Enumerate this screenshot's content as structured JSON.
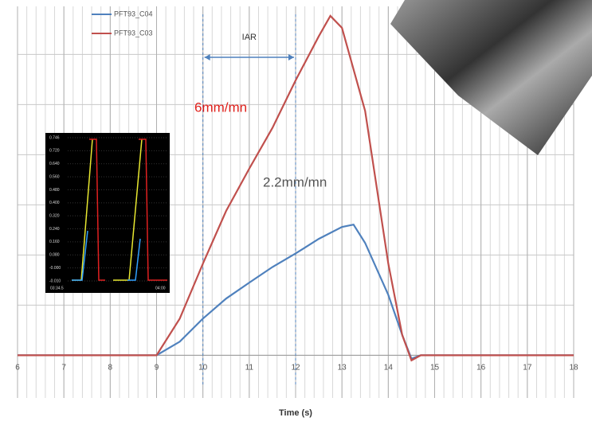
{
  "chart_data": {
    "type": "line",
    "x_label": "Time (s)",
    "xlim": [
      6,
      18
    ],
    "xticks": [
      6,
      7,
      8,
      9,
      10,
      11,
      12,
      13,
      14,
      15,
      16,
      17,
      18
    ],
    "ylim": [
      -0.1,
      1.0
    ],
    "grid": true,
    "legend": "top-left",
    "series": [
      {
        "name": "PFT93_C04",
        "color": "#4f81bd",
        "x": [
          6,
          9,
          9.5,
          10,
          10.5,
          11,
          11.5,
          12,
          12.5,
          13,
          13.25,
          13.5,
          14,
          14.3,
          14.5,
          14.7,
          18
        ],
        "values": [
          0,
          0,
          0.04,
          0.108,
          0.167,
          0.214,
          0.26,
          0.3,
          0.343,
          0.378,
          0.385,
          0.331,
          0.178,
          0.06,
          -0.01,
          0,
          0
        ]
      },
      {
        "name": "PFT93_C03",
        "color": "#c0504d",
        "x": [
          6,
          9,
          9.5,
          10,
          10.5,
          11,
          11.5,
          12,
          12.5,
          12.75,
          13,
          13.5,
          14,
          14.3,
          14.5,
          14.7,
          18
        ],
        "values": [
          0,
          0,
          0.108,
          0.27,
          0.425,
          0.55,
          0.67,
          0.81,
          0.94,
          1.0,
          0.965,
          0.72,
          0.27,
          0.06,
          -0.015,
          0,
          0
        ]
      }
    ],
    "annotations": {
      "range_label": "IAR",
      "range": [
        10,
        12
      ],
      "rate_red": "6mm/mn",
      "rate_blue": "2.2mm/mn"
    },
    "inset": {
      "yticks": [
        "0.746",
        "0.720",
        "0.640",
        "0.560",
        "0.480",
        "0.400",
        "0.320",
        "0.240",
        "0.160",
        "0.080",
        "-0.000",
        "-0.010"
      ],
      "xlabels": [
        "03:34.5",
        "04:00"
      ]
    }
  }
}
